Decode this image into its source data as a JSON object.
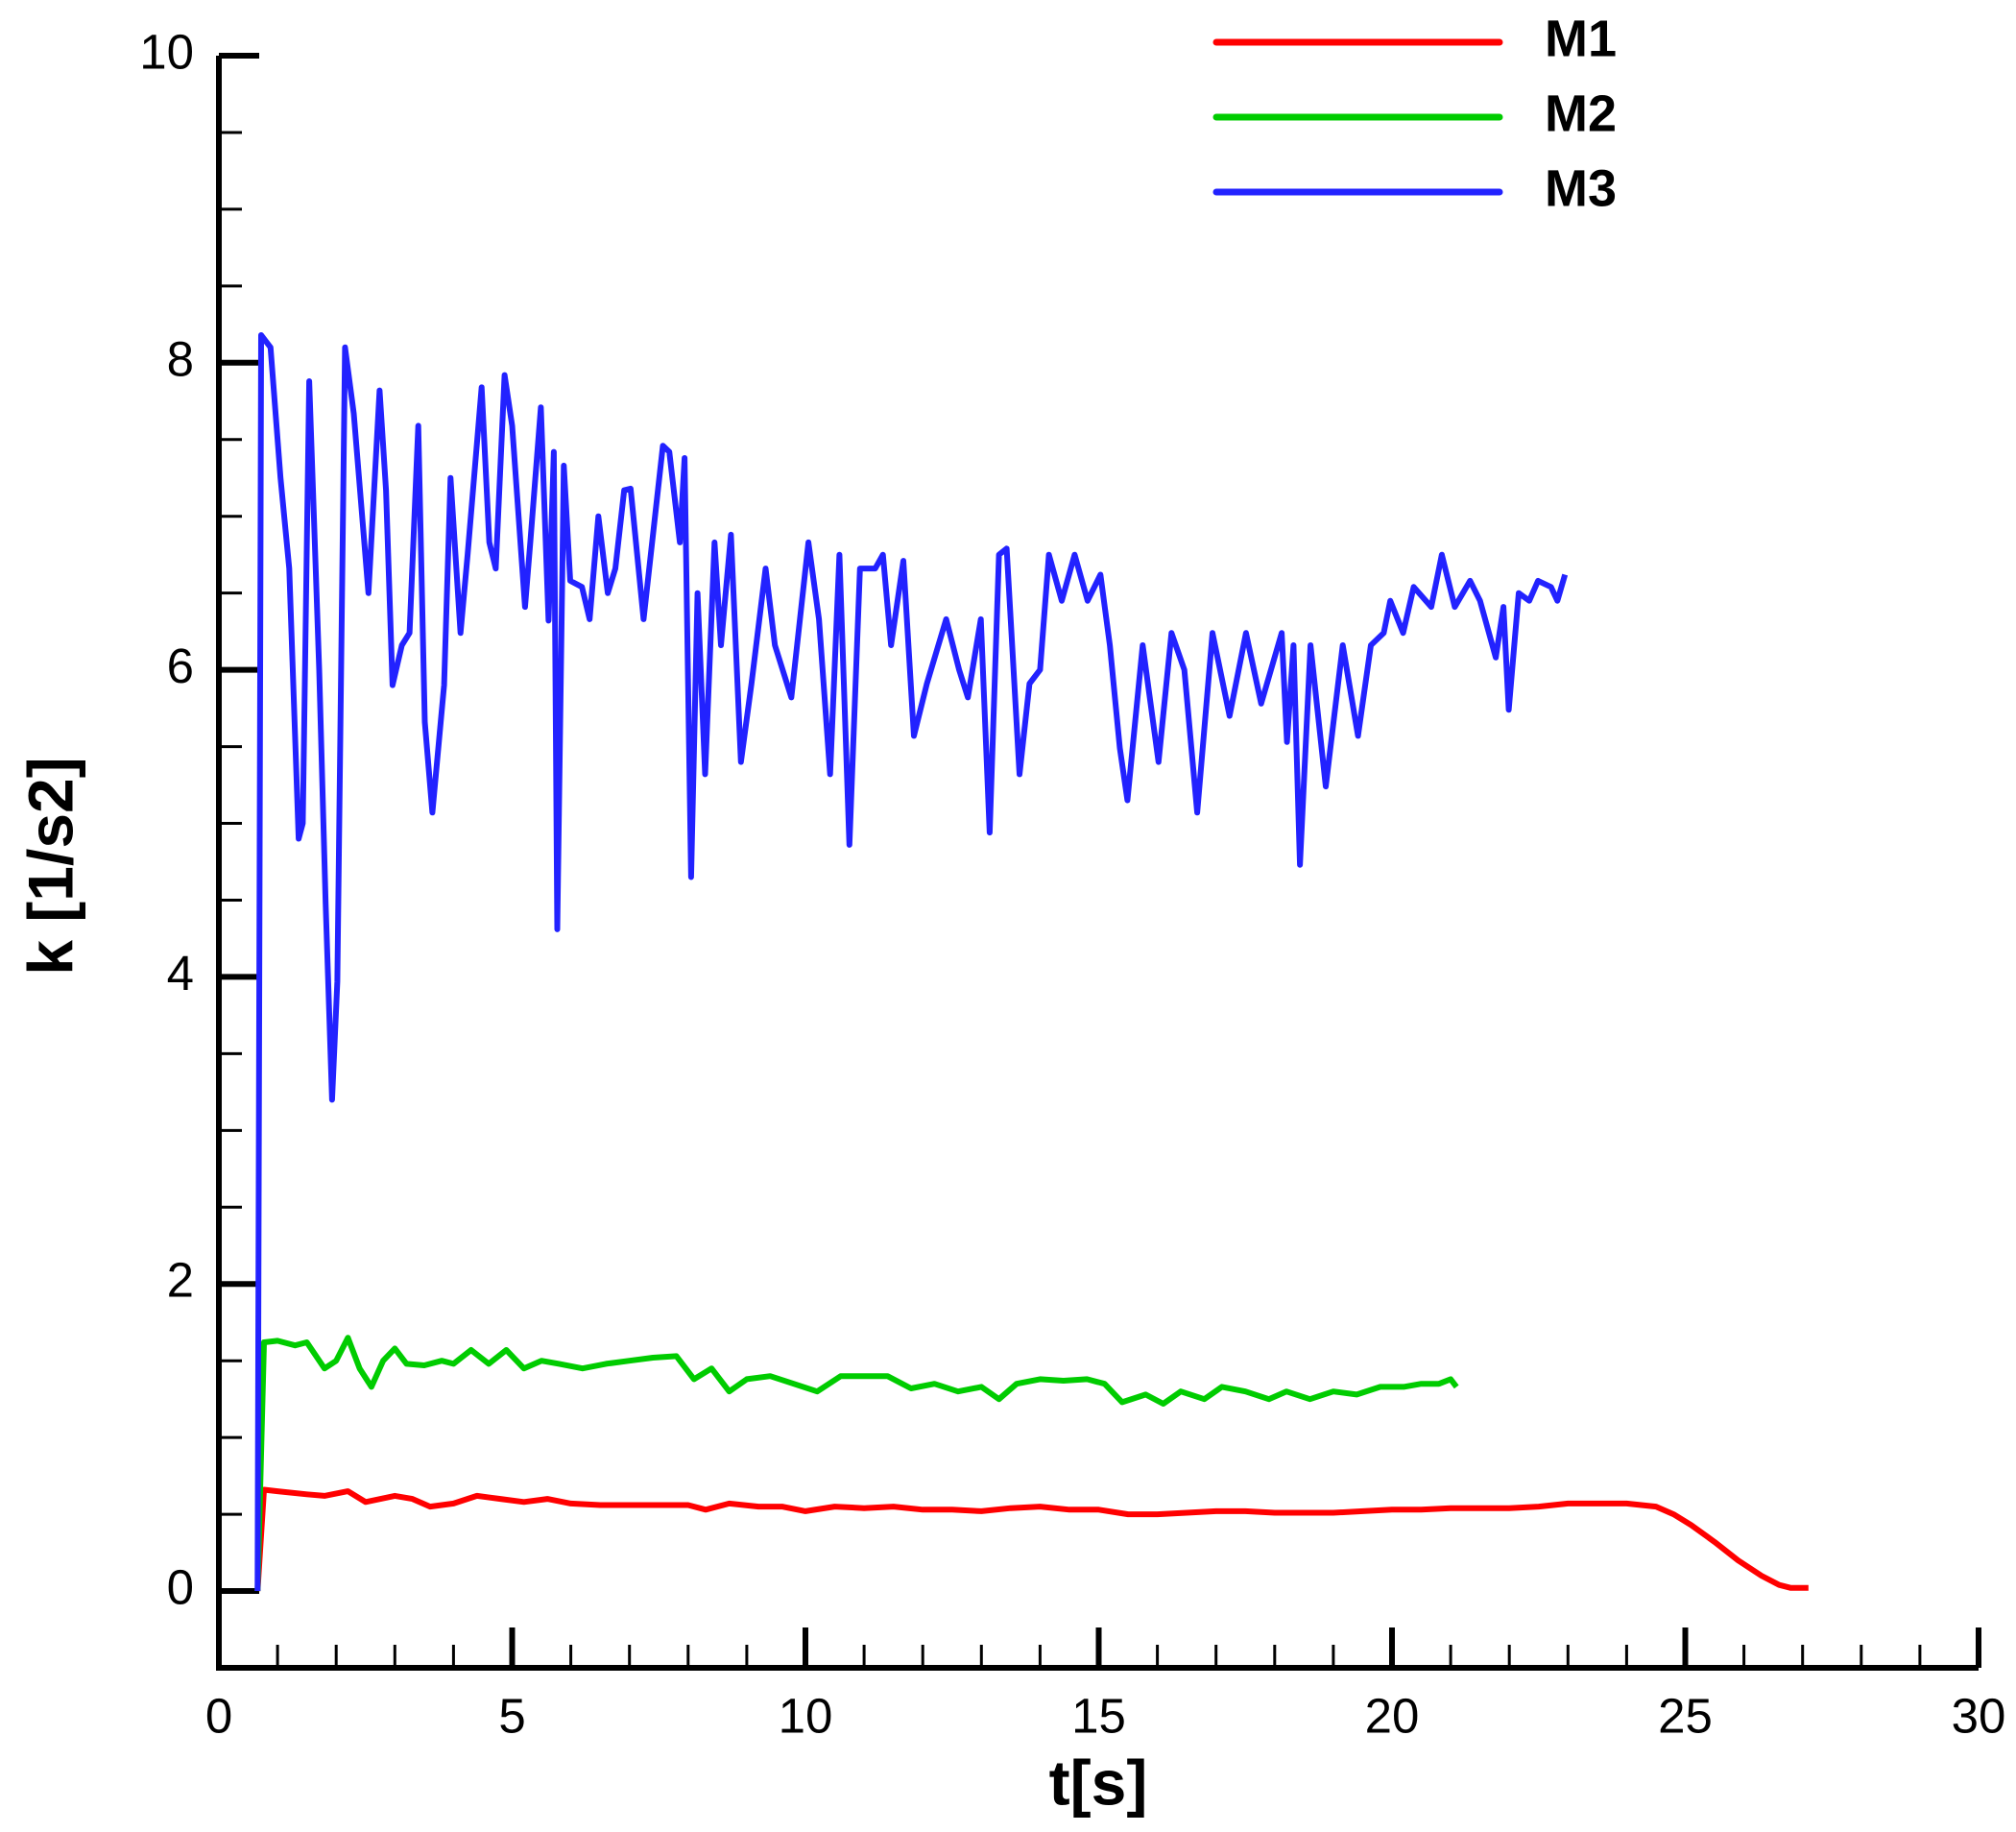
{
  "chart_data": {
    "type": "line",
    "x_label": "t[s]",
    "y_label": "k [1/s2]",
    "xlim": [
      0,
      30
    ],
    "ylim": [
      -0.5,
      10
    ],
    "xticks": [
      0,
      5,
      10,
      15,
      20,
      25,
      30
    ],
    "yticks": [
      0,
      2,
      4,
      6,
      8,
      10
    ],
    "minor_ticks": {
      "x": 1,
      "y": 0.5
    },
    "legend": "upper right",
    "grid": false,
    "series": [
      {
        "name": "M1",
        "color": "#ff0000",
        "x": [
          0.66,
          0.77,
          1.0,
          1.5,
          1.8,
          2.2,
          2.5,
          3.0,
          3.3,
          3.6,
          4.0,
          4.4,
          4.8,
          5.2,
          5.6,
          6.0,
          6.5,
          7.0,
          7.5,
          8.0,
          8.3,
          8.7,
          9.2,
          9.6,
          10.0,
          10.5,
          11.0,
          11.5,
          12.0,
          12.5,
          13.0,
          13.5,
          14.0,
          14.5,
          15.0,
          15.5,
          16.0,
          16.5,
          17.0,
          17.5,
          18.0,
          18.5,
          19.0,
          19.5,
          20.0,
          20.5,
          21.0,
          21.5,
          22.0,
          22.5,
          23.0,
          23.5,
          24.0,
          24.5,
          24.8,
          25.1,
          25.5,
          25.9,
          26.3,
          26.6,
          26.8,
          27.1
        ],
        "values": [
          0,
          0.66,
          0.65,
          0.63,
          0.62,
          0.65,
          0.58,
          0.62,
          0.6,
          0.55,
          0.57,
          0.62,
          0.6,
          0.58,
          0.6,
          0.57,
          0.56,
          0.56,
          0.56,
          0.56,
          0.53,
          0.57,
          0.55,
          0.55,
          0.52,
          0.55,
          0.54,
          0.55,
          0.53,
          0.53,
          0.52,
          0.54,
          0.55,
          0.53,
          0.53,
          0.5,
          0.5,
          0.51,
          0.52,
          0.52,
          0.51,
          0.51,
          0.51,
          0.52,
          0.53,
          0.53,
          0.54,
          0.54,
          0.54,
          0.55,
          0.57,
          0.57,
          0.57,
          0.55,
          0.5,
          0.43,
          0.32,
          0.2,
          0.1,
          0.04,
          0.02,
          0.02
        ]
      },
      {
        "name": "M2",
        "color": "#00cc00",
        "x": [
          0.66,
          0.77,
          1.0,
          1.3,
          1.5,
          1.8,
          2.0,
          2.2,
          2.4,
          2.6,
          2.8,
          3.0,
          3.2,
          3.5,
          3.8,
          4.0,
          4.3,
          4.6,
          4.9,
          5.2,
          5.5,
          5.8,
          6.2,
          6.6,
          7.0,
          7.4,
          7.8,
          8.1,
          8.4,
          8.7,
          9.0,
          9.4,
          9.8,
          10.2,
          10.6,
          11.0,
          11.4,
          11.8,
          12.2,
          12.6,
          13.0,
          13.3,
          13.6,
          14.0,
          14.4,
          14.8,
          15.1,
          15.4,
          15.8,
          16.1,
          16.4,
          16.8,
          17.1,
          17.5,
          17.9,
          18.2,
          18.6,
          19.0,
          19.4,
          19.8,
          20.2,
          20.5,
          20.8,
          21.0,
          21.1
        ],
        "values": [
          0,
          1.62,
          1.63,
          1.6,
          1.62,
          1.45,
          1.5,
          1.65,
          1.45,
          1.33,
          1.5,
          1.58,
          1.48,
          1.47,
          1.5,
          1.48,
          1.57,
          1.48,
          1.57,
          1.45,
          1.5,
          1.48,
          1.45,
          1.48,
          1.5,
          1.52,
          1.53,
          1.38,
          1.45,
          1.3,
          1.38,
          1.4,
          1.35,
          1.3,
          1.4,
          1.4,
          1.4,
          1.32,
          1.35,
          1.3,
          1.33,
          1.25,
          1.35,
          1.38,
          1.37,
          1.38,
          1.35,
          1.23,
          1.28,
          1.22,
          1.3,
          1.25,
          1.33,
          1.3,
          1.25,
          1.3,
          1.25,
          1.3,
          1.28,
          1.33,
          1.33,
          1.35,
          1.35,
          1.38,
          1.33
        ]
      },
      {
        "name": "M3",
        "color": "#2222ff",
        "x": [
          0.66,
          0.72,
          0.88,
          1.05,
          1.2,
          1.36,
          1.43,
          1.54,
          1.71,
          1.82,
          1.93,
          2.02,
          2.15,
          2.3,
          2.55,
          2.74,
          2.85,
          2.96,
          3.12,
          3.25,
          3.4,
          3.51,
          3.64,
          3.84,
          3.95,
          4.12,
          4.24,
          4.48,
          4.61,
          4.72,
          4.87,
          5.0,
          5.22,
          5.31,
          5.49,
          5.62,
          5.71,
          5.77,
          5.88,
          5.99,
          6.19,
          6.32,
          6.47,
          6.63,
          6.76,
          6.91,
          7.02,
          7.24,
          7.57,
          7.68,
          7.86,
          7.94,
          8.05,
          8.16,
          8.29,
          8.45,
          8.56,
          8.73,
          8.9,
          9.08,
          9.32,
          9.48,
          9.76,
          10.05,
          10.23,
          10.42,
          10.58,
          10.75,
          10.93,
          11.19,
          11.32,
          11.46,
          11.67,
          11.85,
          12.07,
          12.4,
          12.62,
          12.77,
          12.99,
          13.14,
          13.3,
          13.43,
          13.65,
          13.82,
          14.0,
          14.15,
          14.37,
          14.59,
          14.81,
          15.03,
          15.19,
          15.36,
          15.49,
          15.75,
          16.02,
          16.24,
          16.46,
          16.68,
          16.94,
          17.23,
          17.51,
          17.77,
          18.12,
          18.21,
          18.32,
          18.43,
          18.61,
          18.87,
          19.16,
          19.42,
          19.64,
          19.86,
          19.97,
          20.19,
          20.37,
          20.67,
          20.85,
          21.07,
          21.33,
          21.5,
          21.77,
          21.9,
          21.99,
          22.16,
          22.34,
          22.49,
          22.71,
          22.82,
          22.95
        ],
        "values": [
          0,
          8.18,
          8.1,
          7.25,
          6.66,
          4.9,
          5.0,
          7.88,
          6.0,
          4.48,
          3.2,
          3.97,
          8.1,
          7.67,
          6.5,
          7.82,
          7.17,
          5.9,
          6.16,
          6.24,
          7.59,
          5.66,
          5.07,
          5.9,
          7.25,
          6.24,
          6.75,
          7.84,
          6.83,
          6.66,
          7.92,
          7.59,
          6.41,
          6.83,
          7.71,
          6.32,
          7.42,
          4.31,
          7.33,
          6.58,
          6.54,
          6.33,
          7.0,
          6.5,
          6.66,
          7.17,
          7.18,
          6.33,
          7.46,
          7.42,
          6.83,
          7.38,
          4.65,
          6.5,
          5.32,
          6.83,
          6.16,
          6.88,
          5.4,
          5.91,
          6.66,
          6.16,
          5.82,
          6.83,
          6.33,
          5.32,
          6.75,
          4.86,
          6.66,
          6.66,
          6.75,
          6.16,
          6.71,
          5.57,
          5.91,
          6.33,
          6.0,
          5.82,
          6.33,
          4.94,
          6.75,
          6.79,
          5.32,
          5.91,
          6.0,
          6.75,
          6.45,
          6.75,
          6.45,
          6.62,
          6.16,
          5.49,
          5.15,
          6.16,
          5.4,
          6.24,
          6.0,
          5.07,
          6.24,
          5.7,
          6.24,
          5.78,
          6.24,
          5.53,
          6.16,
          4.73,
          6.16,
          5.24,
          6.16,
          5.57,
          6.16,
          6.24,
          6.45,
          6.24,
          6.54,
          6.41,
          6.75,
          6.41,
          6.58,
          6.45,
          6.08,
          6.41,
          5.74,
          6.5,
          6.45,
          6.58,
          6.54,
          6.45,
          6.62
        ]
      }
    ]
  }
}
